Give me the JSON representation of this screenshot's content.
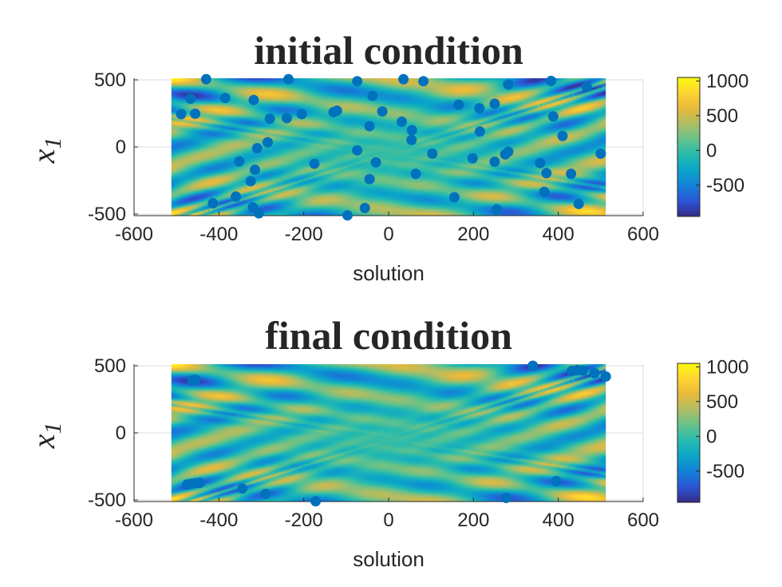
{
  "colors": {
    "marker": "#0072BD",
    "axis": "#262626",
    "grid": "#dcdcdc",
    "parula": [
      "#352a87",
      "#2c55d6",
      "#1481d6",
      "#0ba5c9",
      "#26bbae",
      "#66c28a",
      "#aebd64",
      "#e8b93b",
      "#fed431",
      "#f9fb0e"
    ]
  },
  "chart_data": [
    {
      "type": "scatter",
      "title": "initial condition",
      "xlabel": "solution",
      "ylabel": "x",
      "ylabel_subscript": "1",
      "xlim": [
        -600,
        600
      ],
      "ylim": [
        -512,
        512
      ],
      "field_extent": [
        -512,
        512
      ],
      "xticks": [
        -600,
        -400,
        -200,
        0,
        200,
        400,
        600
      ],
      "yticks": [
        -500,
        0,
        500
      ],
      "xtick_labels": [
        "-600",
        "-400",
        "-200",
        "0",
        "200",
        "400",
        "600"
      ],
      "ytick_labels": [
        "-500",
        "0",
        "500"
      ],
      "grid": true,
      "colorbar": {
        "range": [
          -950,
          1050
        ],
        "ticks": [
          1000,
          500,
          0,
          -500
        ],
        "labels": [
          "1000",
          "500",
          "0",
          "-500"
        ]
      },
      "points": [
        [
          -430,
          505
        ],
        [
          -236,
          505
        ],
        [
          -74,
          490
        ],
        [
          35,
          505
        ],
        [
          82,
          490
        ],
        [
          383,
          492
        ],
        [
          282,
          465
        ],
        [
          467,
          448
        ],
        [
          -467,
          360
        ],
        [
          -385,
          365
        ],
        [
          -318,
          350
        ],
        [
          -38,
          380
        ],
        [
          165,
          315
        ],
        [
          214,
          288
        ],
        [
          250,
          322
        ],
        [
          -489,
          245
        ],
        [
          -456,
          248
        ],
        [
          -205,
          245
        ],
        [
          -130,
          260
        ],
        [
          -122,
          270
        ],
        [
          -15,
          265
        ],
        [
          -280,
          210
        ],
        [
          -240,
          215
        ],
        [
          31,
          188
        ],
        [
          -45,
          155
        ],
        [
          55,
          125
        ],
        [
          215,
          115
        ],
        [
          388,
          228
        ],
        [
          410,
          82
        ],
        [
          54,
          52
        ],
        [
          -285,
          35
        ],
        [
          -310,
          -10
        ],
        [
          -74,
          -25
        ],
        [
          103,
          -50
        ],
        [
          275,
          -55
        ],
        [
          282,
          -35
        ],
        [
          500,
          -50
        ],
        [
          -352,
          -108
        ],
        [
          -175,
          -125
        ],
        [
          -30,
          -115
        ],
        [
          198,
          -85
        ],
        [
          250,
          -110
        ],
        [
          357,
          -120
        ],
        [
          372,
          -195
        ],
        [
          -315,
          -170
        ],
        [
          -325,
          -255
        ],
        [
          -45,
          -240
        ],
        [
          64,
          -200
        ],
        [
          430,
          -200
        ],
        [
          367,
          -335
        ],
        [
          -360,
          -370
        ],
        [
          155,
          -375
        ],
        [
          -414,
          -420
        ],
        [
          -320,
          -450
        ],
        [
          -56,
          -455
        ],
        [
          255,
          -465
        ],
        [
          448,
          -425
        ],
        [
          -306,
          -495
        ],
        [
          -97,
          -510
        ]
      ]
    },
    {
      "type": "scatter",
      "title": "final condition",
      "xlabel": "solution",
      "ylabel": "x",
      "ylabel_subscript": "1",
      "xlim": [
        -600,
        600
      ],
      "ylim": [
        -512,
        512
      ],
      "field_extent": [
        -512,
        512
      ],
      "xticks": [
        -600,
        -400,
        -200,
        0,
        200,
        400,
        600
      ],
      "yticks": [
        -500,
        0,
        500
      ],
      "xtick_labels": [
        "-600",
        "-400",
        "-200",
        "0",
        "200",
        "400",
        "600"
      ],
      "ytick_labels": [
        "-500",
        "0",
        "500"
      ],
      "grid": true,
      "colorbar": {
        "range": [
          -950,
          1050
        ],
        "ticks": [
          1000,
          500,
          0,
          -500
        ],
        "labels": [
          "1000",
          "500",
          "0",
          "-500"
        ]
      },
      "points": [
        [
          340,
          500
        ],
        [
          432,
          462
        ],
        [
          445,
          468
        ],
        [
          458,
          465
        ],
        [
          485,
          445
        ],
        [
          512,
          420
        ],
        [
          -463,
          392
        ],
        [
          -455,
          395
        ],
        [
          -475,
          -385
        ],
        [
          -465,
          -380
        ],
        [
          -455,
          -375
        ],
        [
          -445,
          -372
        ],
        [
          -345,
          -415
        ],
        [
          -290,
          -455
        ],
        [
          -172,
          -510
        ],
        [
          277,
          -485
        ],
        [
          395,
          -360
        ]
      ]
    }
  ]
}
